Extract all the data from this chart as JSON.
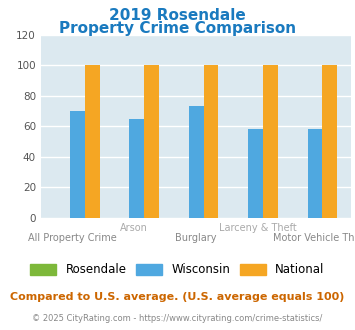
{
  "title_line1": "2019 Rosendale",
  "title_line2": "Property Crime Comparison",
  "title_color": "#1a7abf",
  "categories": [
    "All Property Crime",
    "Arson",
    "Burglary",
    "Larceny & Theft",
    "Motor Vehicle Theft"
  ],
  "x_labels_upper": [
    "",
    "Arson",
    "",
    "Larceny & Theft",
    ""
  ],
  "x_labels_lower": [
    "All Property Crime",
    "",
    "Burglary",
    "",
    "Motor Vehicle Theft"
  ],
  "rosendale": [
    0,
    0,
    0,
    0,
    0
  ],
  "wisconsin": [
    70,
    65,
    73,
    58,
    58
  ],
  "national": [
    100,
    100,
    100,
    100,
    100
  ],
  "rosendale_color": "#7db83a",
  "wisconsin_color": "#4fa8e0",
  "national_color": "#f5a623",
  "ylim": [
    0,
    120
  ],
  "yticks": [
    0,
    20,
    40,
    60,
    80,
    100,
    120
  ],
  "plot_bg": "#dce9f0",
  "grid_color": "#ffffff",
  "footer_text": "Compared to U.S. average. (U.S. average equals 100)",
  "footer_color": "#cc6600",
  "copyright_text": "© 2025 CityRating.com - https://www.cityrating.com/crime-statistics/",
  "copyright_color": "#888888",
  "tick_label_color": "#999999",
  "label_upper_color": "#aaaaaa",
  "label_lower_color": "#888888"
}
